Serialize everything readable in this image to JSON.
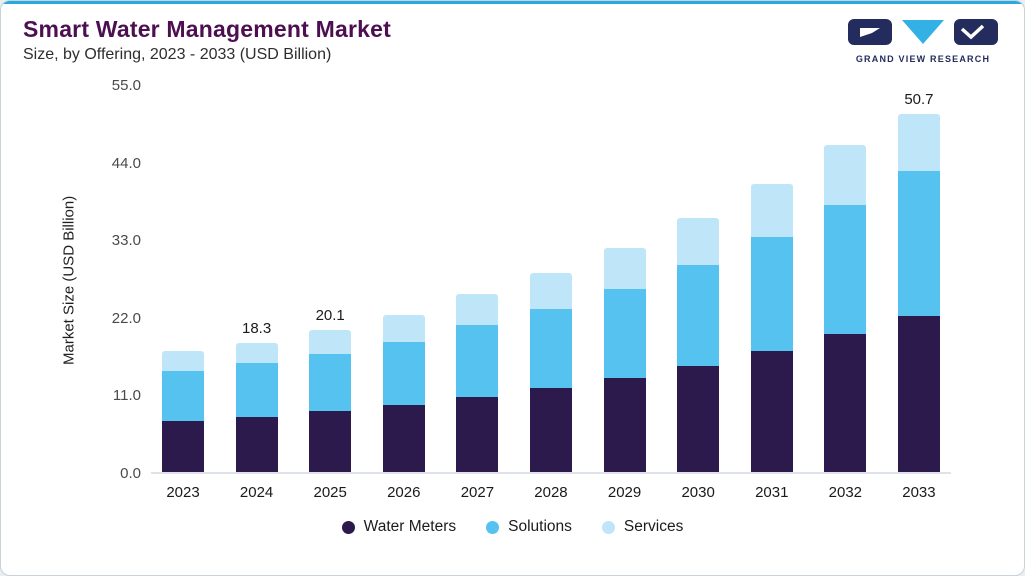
{
  "header": {
    "title": "Smart Water Management Market",
    "subtitle": "Size, by Offering, 2023 - 2033 (USD Billion)",
    "logo_text": "GRAND VIEW RESEARCH"
  },
  "chart_data": {
    "type": "bar",
    "stacked": true,
    "title": "Smart Water Management Market Size, by Offering, 2023 - 2033 (USD Billion)",
    "xlabel": "",
    "ylabel": "Market Size (USD Billion)",
    "ylim": [
      0,
      55
    ],
    "yticks": [
      "0.0",
      "11.0",
      "22.0",
      "33.0",
      "44.0",
      "55.0"
    ],
    "grid": false,
    "legend_position": "bottom",
    "categories": [
      "2023",
      "2024",
      "2025",
      "2026",
      "2027",
      "2028",
      "2029",
      "2030",
      "2031",
      "2032",
      "2033"
    ],
    "series": [
      {
        "name": "Water Meters",
        "color": "#2c1a4d",
        "values": [
          7.3,
          7.8,
          8.6,
          9.5,
          10.7,
          11.9,
          13.3,
          15.0,
          17.2,
          19.5,
          22.1
        ]
      },
      {
        "name": "Solutions",
        "color": "#56c2ef",
        "values": [
          7.0,
          7.6,
          8.2,
          9.0,
          10.1,
          11.2,
          12.6,
          14.3,
          16.1,
          18.3,
          20.6
        ]
      },
      {
        "name": "Services",
        "color": "#bfe5f8",
        "values": [
          2.8,
          2.9,
          3.3,
          3.7,
          4.4,
          5.1,
          5.9,
          6.7,
          7.6,
          8.5,
          8.0
        ]
      }
    ],
    "totals": [
      17.1,
      18.3,
      20.1,
      22.2,
      25.2,
      28.2,
      31.8,
      36.0,
      40.9,
      46.3,
      50.7
    ],
    "bar_labels": {
      "2024": "18.3",
      "2025": "20.1",
      "2033": "50.7"
    }
  },
  "colors": {
    "accent_line": "#2aa9e0",
    "title": "#4c0f50",
    "logo_navy": "#232c5c",
    "logo_cyan": "#33b1e4"
  }
}
